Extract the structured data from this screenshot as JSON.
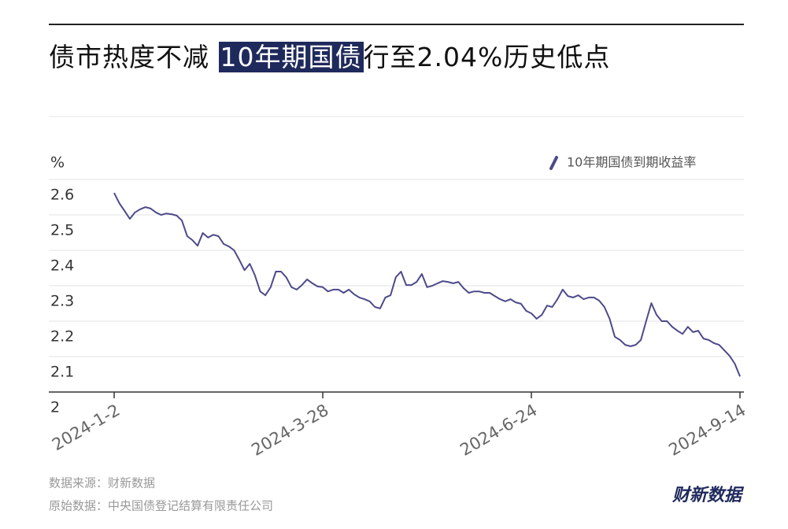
{
  "chart_data": {
    "type": "line",
    "title_parts": [
      "债市热度不减 ",
      "10年期国债",
      "行至2.04%历史低点"
    ],
    "y_label": "%",
    "source": "数据来源：财新数据",
    "raw_source": "原始数据：中央国债登记结算有限责任公司",
    "brand": "财新数据",
    "legend_position": "top-right",
    "grid": true,
    "ylim": [
      2,
      2.6
    ],
    "yticks": [
      2,
      2.1,
      2.2,
      2.3,
      2.4,
      2.5,
      2.6
    ],
    "categories": [
      "2024-1-2",
      null,
      null,
      null,
      null,
      null,
      null,
      null,
      null,
      null,
      null,
      null,
      null,
      null,
      null,
      null,
      null,
      null,
      null,
      null,
      null,
      null,
      null,
      null,
      null,
      null,
      null,
      null,
      null,
      null,
      null,
      null,
      null,
      null,
      null,
      null,
      null,
      null,
      null,
      null,
      "2024-3-28",
      null,
      null,
      null,
      null,
      null,
      null,
      null,
      null,
      null,
      null,
      null,
      null,
      null,
      null,
      null,
      null,
      null,
      null,
      null,
      null,
      null,
      null,
      null,
      null,
      null,
      null,
      null,
      null,
      null,
      null,
      null,
      null,
      null,
      null,
      null,
      null,
      null,
      null,
      null,
      "2024-6-24",
      null,
      null,
      null,
      null,
      null,
      null,
      null,
      null,
      null,
      null,
      null,
      null,
      null,
      null,
      null,
      null,
      null,
      null,
      null,
      null,
      null,
      null,
      null,
      null,
      null,
      null,
      null,
      null,
      null,
      null,
      null,
      null,
      null,
      null,
      null,
      null,
      null,
      null,
      null,
      "2024-9-14"
    ],
    "series": [
      {
        "name": "10年期国债到期收益率",
        "color": "#4d4a8a",
        "values": [
          2.562,
          2.533,
          2.511,
          2.489,
          2.507,
          2.516,
          2.522,
          2.518,
          2.507,
          2.5,
          2.504,
          2.502,
          2.498,
          2.484,
          2.44,
          2.429,
          2.413,
          2.449,
          2.436,
          2.444,
          2.44,
          2.418,
          2.411,
          2.4,
          2.373,
          2.344,
          2.362,
          2.329,
          2.284,
          2.273,
          2.296,
          2.34,
          2.34,
          2.324,
          2.296,
          2.289,
          2.302,
          2.318,
          2.307,
          2.298,
          2.296,
          2.284,
          2.289,
          2.289,
          2.28,
          2.289,
          2.276,
          2.267,
          2.262,
          2.256,
          2.24,
          2.236,
          2.267,
          2.273,
          2.324,
          2.34,
          2.302,
          2.302,
          2.311,
          2.333,
          2.296,
          2.3,
          2.307,
          2.313,
          2.311,
          2.307,
          2.311,
          2.293,
          2.28,
          2.284,
          2.284,
          2.28,
          2.28,
          2.271,
          2.262,
          2.256,
          2.262,
          2.253,
          2.249,
          2.229,
          2.222,
          2.207,
          2.218,
          2.244,
          2.24,
          2.262,
          2.289,
          2.271,
          2.267,
          2.273,
          2.262,
          2.267,
          2.267,
          2.258,
          2.24,
          2.207,
          2.156,
          2.147,
          2.133,
          2.129,
          2.133,
          2.147,
          2.2,
          2.251,
          2.218,
          2.2,
          2.2,
          2.184,
          2.173,
          2.164,
          2.184,
          2.169,
          2.173,
          2.151,
          2.147,
          2.138,
          2.133,
          2.118,
          2.102,
          2.08,
          2.044
        ]
      }
    ]
  }
}
